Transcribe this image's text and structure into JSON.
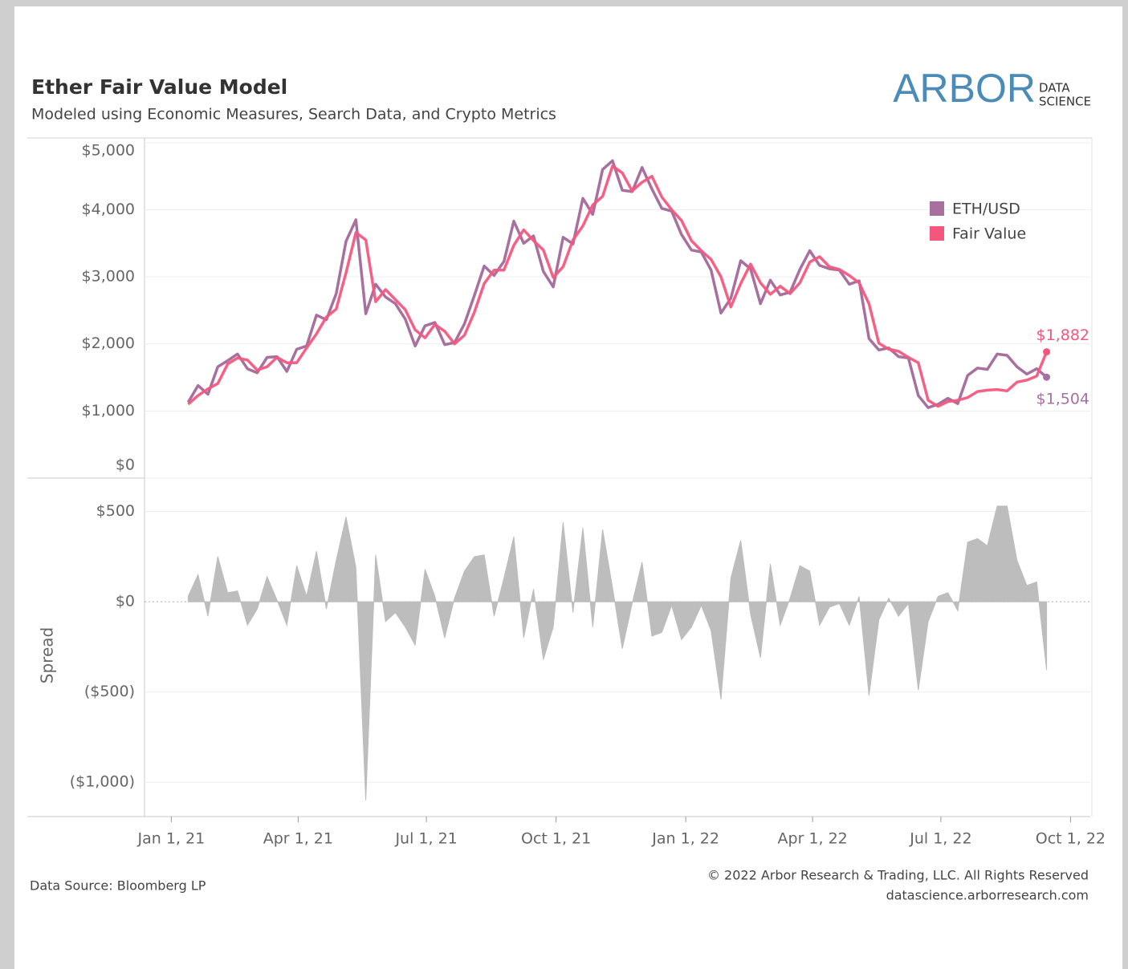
{
  "title": "Ether Fair Value Model",
  "subtitle": "Modeled using Economic Measures, Search Data, and Crypto Metrics",
  "logo": {
    "name": "ARBOR",
    "tag": [
      "DATA",
      "SCIENCE"
    ]
  },
  "source": "Data Source: Bloomberg LP",
  "copyright": [
    "© 2022 Arbor Research & Trading, LLC. All Rights Reserved",
    "datascience.arborresearch.com"
  ],
  "chart_data": [
    {
      "type": "line",
      "x": [
        "2021-01-13",
        "2021-01-20",
        "2021-01-27",
        "2021-02-03",
        "2021-02-10",
        "2021-02-17",
        "2021-02-24",
        "2021-03-03",
        "2021-03-10",
        "2021-03-17",
        "2021-03-24",
        "2021-03-31",
        "2021-04-07",
        "2021-04-14",
        "2021-04-21",
        "2021-04-28",
        "2021-05-05",
        "2021-05-12",
        "2021-05-19",
        "2021-05-26",
        "2021-06-02",
        "2021-06-09",
        "2021-06-16",
        "2021-06-23",
        "2021-06-30",
        "2021-07-07",
        "2021-07-14",
        "2021-07-21",
        "2021-07-28",
        "2021-08-04",
        "2021-08-11",
        "2021-08-18",
        "2021-08-25",
        "2021-09-01",
        "2021-09-08",
        "2021-09-15",
        "2021-09-22",
        "2021-09-29",
        "2021-10-06",
        "2021-10-13",
        "2021-10-20",
        "2021-10-27",
        "2021-11-03",
        "2021-11-10",
        "2021-11-17",
        "2021-11-24",
        "2021-12-01",
        "2021-12-08",
        "2021-12-15",
        "2021-12-22",
        "2021-12-29",
        "2022-01-05",
        "2022-01-12",
        "2022-01-19",
        "2022-01-26",
        "2022-02-02",
        "2022-02-09",
        "2022-02-16",
        "2022-02-23",
        "2022-03-02",
        "2022-03-09",
        "2022-03-16",
        "2022-03-23",
        "2022-03-30",
        "2022-04-06",
        "2022-04-13",
        "2022-04-20",
        "2022-04-27",
        "2022-05-04",
        "2022-05-11",
        "2022-05-18",
        "2022-05-25",
        "2022-06-01",
        "2022-06-08",
        "2022-06-15",
        "2022-06-22",
        "2022-06-29",
        "2022-07-06",
        "2022-07-13",
        "2022-07-20",
        "2022-07-27",
        "2022-08-03",
        "2022-08-10",
        "2022-08-17",
        "2022-08-24",
        "2022-08-31",
        "2022-09-07",
        "2022-09-14"
      ],
      "xlim": [
        "2020-12-13",
        "2022-10-15"
      ],
      "ylim": [
        0,
        5070
      ],
      "yticks": [
        {
          "value": 0,
          "label": "$0"
        },
        {
          "value": 1000,
          "label": "$1,000"
        },
        {
          "value": 2000,
          "label": "$2,000"
        },
        {
          "value": 3000,
          "label": "$3,000"
        },
        {
          "value": 4000,
          "label": "$4,000"
        },
        {
          "value": 5000,
          "label": "$5,000"
        }
      ],
      "grid": true,
      "legend": "top-right",
      "series": [
        {
          "name": "ETH/USD",
          "color": "#a8709f",
          "values": [
            1130,
            1380,
            1250,
            1660,
            1750,
            1850,
            1630,
            1570,
            1800,
            1810,
            1590,
            1920,
            1970,
            2430,
            2360,
            2750,
            3530,
            3850,
            2450,
            2890,
            2700,
            2600,
            2370,
            1970,
            2270,
            2320,
            1990,
            2020,
            2300,
            2720,
            3160,
            3020,
            3230,
            3830,
            3500,
            3610,
            3080,
            2850,
            3590,
            3490,
            4170,
            3930,
            4600,
            4730,
            4290,
            4270,
            4630,
            4310,
            4020,
            3980,
            3630,
            3400,
            3370,
            3100,
            2460,
            2680,
            3240,
            3120,
            2600,
            2950,
            2730,
            2770,
            3110,
            3390,
            3170,
            3120,
            3100,
            2890,
            2940,
            2080,
            1910,
            1940,
            1810,
            1790,
            1230,
            1050,
            1100,
            1190,
            1110,
            1530,
            1640,
            1620,
            1850,
            1830,
            1660,
            1550,
            1630,
            1504
          ],
          "value_labels": [
            null,
            null,
            null,
            null,
            null,
            null,
            null,
            null,
            null,
            null,
            null,
            null,
            null,
            null,
            null,
            null,
            null,
            null,
            null,
            null,
            null,
            null,
            null,
            null,
            null,
            null,
            null,
            null,
            null,
            null,
            null,
            null,
            null,
            null,
            null,
            null,
            null,
            null,
            null,
            null,
            null,
            null,
            null,
            null,
            null,
            null,
            null,
            null,
            null,
            null,
            null,
            null,
            null,
            null,
            null,
            null,
            null,
            null,
            null,
            null,
            null,
            null,
            null,
            null,
            null,
            null,
            null,
            null,
            null,
            null,
            null,
            null,
            null,
            null,
            null,
            null,
            null,
            null,
            null,
            null,
            null,
            null,
            null,
            null,
            null,
            null,
            null,
            "$1,504"
          ]
        },
        {
          "name": "Fair Value",
          "color": "#f4577e",
          "values": [
            1100,
            1230,
            1330,
            1410,
            1700,
            1790,
            1760,
            1610,
            1660,
            1800,
            1720,
            1720,
            1940,
            2150,
            2400,
            2520,
            3060,
            3660,
            3550,
            2630,
            2810,
            2660,
            2510,
            2210,
            2090,
            2290,
            2190,
            2000,
            2130,
            2470,
            2900,
            3100,
            3100,
            3470,
            3700,
            3540,
            3400,
            2990,
            3150,
            3550,
            3760,
            4070,
            4200,
            4650,
            4550,
            4280,
            4410,
            4500,
            4190,
            4000,
            3840,
            3540,
            3390,
            3260,
            3000,
            2550,
            2900,
            3190,
            2910,
            2740,
            2860,
            2750,
            2910,
            3220,
            3300,
            3150,
            3110,
            3020,
            2910,
            2600,
            2010,
            1920,
            1890,
            1800,
            1720,
            1160,
            1070,
            1140,
            1160,
            1200,
            1290,
            1310,
            1320,
            1300,
            1430,
            1460,
            1520,
            1882
          ],
          "value_labels": [
            null,
            null,
            null,
            null,
            null,
            null,
            null,
            null,
            null,
            null,
            null,
            null,
            null,
            null,
            null,
            null,
            null,
            null,
            null,
            null,
            null,
            null,
            null,
            null,
            null,
            null,
            null,
            null,
            null,
            null,
            null,
            null,
            null,
            null,
            null,
            null,
            null,
            null,
            null,
            null,
            null,
            null,
            null,
            null,
            null,
            null,
            null,
            null,
            null,
            null,
            null,
            null,
            null,
            null,
            null,
            null,
            null,
            null,
            null,
            null,
            null,
            null,
            null,
            null,
            null,
            null,
            null,
            null,
            null,
            null,
            null,
            null,
            null,
            null,
            null,
            null,
            null,
            null,
            null,
            null,
            null,
            null,
            null,
            null,
            null,
            null,
            null,
            "$1,882"
          ]
        }
      ]
    },
    {
      "type": "area",
      "y_label": "Spread",
      "x": [
        "2021-01-13",
        "2021-01-20",
        "2021-01-27",
        "2021-02-03",
        "2021-02-10",
        "2021-02-17",
        "2021-02-24",
        "2021-03-03",
        "2021-03-10",
        "2021-03-17",
        "2021-03-24",
        "2021-03-31",
        "2021-04-07",
        "2021-04-14",
        "2021-04-21",
        "2021-04-28",
        "2021-05-05",
        "2021-05-12",
        "2021-05-19",
        "2021-05-26",
        "2021-06-02",
        "2021-06-09",
        "2021-06-16",
        "2021-06-23",
        "2021-06-30",
        "2021-07-07",
        "2021-07-14",
        "2021-07-21",
        "2021-07-28",
        "2021-08-04",
        "2021-08-11",
        "2021-08-18",
        "2021-08-25",
        "2021-09-01",
        "2021-09-08",
        "2021-09-15",
        "2021-09-22",
        "2021-09-29",
        "2021-10-06",
        "2021-10-13",
        "2021-10-20",
        "2021-10-27",
        "2021-11-03",
        "2021-11-10",
        "2021-11-17",
        "2021-11-24",
        "2021-12-01",
        "2021-12-08",
        "2021-12-15",
        "2021-12-22",
        "2021-12-29",
        "2022-01-05",
        "2022-01-12",
        "2022-01-19",
        "2022-01-26",
        "2022-02-02",
        "2022-02-09",
        "2022-02-16",
        "2022-02-23",
        "2022-03-02",
        "2022-03-09",
        "2022-03-16",
        "2022-03-23",
        "2022-03-30",
        "2022-04-06",
        "2022-04-13",
        "2022-04-20",
        "2022-04-27",
        "2022-05-04",
        "2022-05-11",
        "2022-05-18",
        "2022-05-25",
        "2022-06-01",
        "2022-06-08",
        "2022-06-15",
        "2022-06-22",
        "2022-06-29",
        "2022-07-06",
        "2022-07-13",
        "2022-07-20",
        "2022-07-27",
        "2022-08-03",
        "2022-08-10",
        "2022-08-17",
        "2022-08-24",
        "2022-08-31",
        "2022-09-07",
        "2022-09-14"
      ],
      "values": [
        30,
        150,
        -80,
        250,
        50,
        60,
        -130,
        -40,
        140,
        10,
        -130,
        200,
        30,
        280,
        -40,
        230,
        470,
        190,
        -1100,
        260,
        -110,
        -60,
        -140,
        -240,
        180,
        30,
        -200,
        20,
        170,
        250,
        260,
        -80,
        130,
        360,
        -200,
        70,
        -320,
        -140,
        440,
        -60,
        410,
        -140,
        400,
        80,
        -260,
        -10,
        220,
        -190,
        -170,
        -20,
        -210,
        -140,
        -20,
        -160,
        -540,
        130,
        340,
        -70,
        -310,
        210,
        -130,
        20,
        200,
        170,
        -130,
        -30,
        -10,
        -130,
        30,
        -520,
        -100,
        20,
        -80,
        -10,
        -490,
        -110,
        30,
        50,
        -50,
        330,
        350,
        310,
        530,
        530,
        230,
        90,
        110,
        -378
      ],
      "color": "#bdbdbd",
      "xlim": [
        "2020-12-13",
        "2022-10-15"
      ],
      "ylim": [
        -1190,
        685
      ],
      "yticks": [
        {
          "value": -1000,
          "label": "($1,000)"
        },
        {
          "value": -500,
          "label": "($500)"
        },
        {
          "value": 0,
          "label": "$0"
        },
        {
          "value": 500,
          "label": "$500"
        }
      ],
      "xticks": [
        {
          "value": "2021-01-01",
          "label": "Jan 1, 21"
        },
        {
          "value": "2021-04-01",
          "label": "Apr 1, 21"
        },
        {
          "value": "2021-07-01",
          "label": "Jul 1, 21"
        },
        {
          "value": "2021-10-01",
          "label": "Oct 1, 21"
        },
        {
          "value": "2022-01-01",
          "label": "Jan 1, 22"
        },
        {
          "value": "2022-04-01",
          "label": "Apr 1, 22"
        },
        {
          "value": "2022-07-01",
          "label": "Jul 1, 22"
        },
        {
          "value": "2022-10-01",
          "label": "Oct 1, 22"
        }
      ],
      "grid": true
    }
  ]
}
